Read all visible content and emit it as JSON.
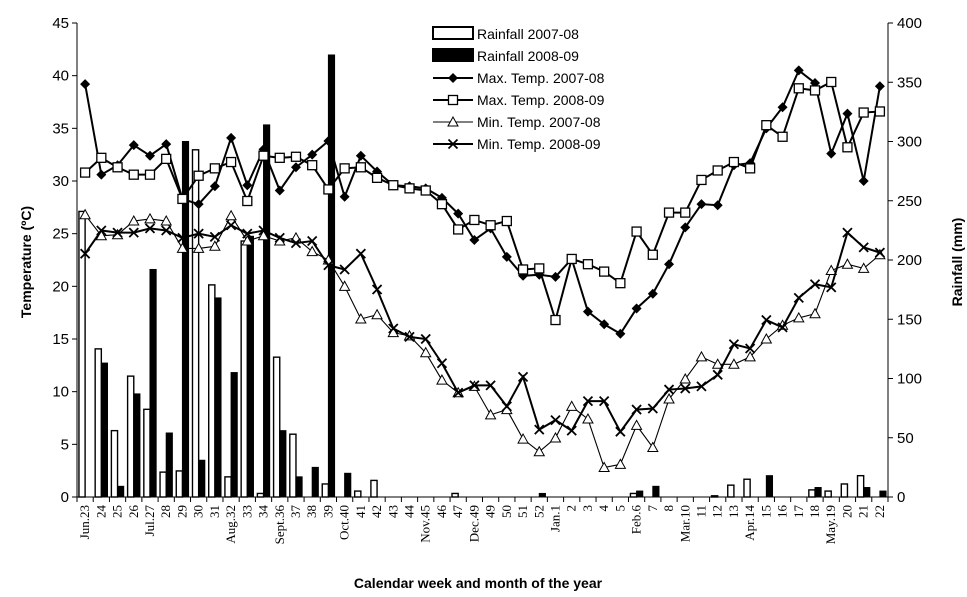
{
  "chart_data": {
    "type": "bar",
    "xlabel": "Calendar week and month of the year",
    "ylabel": "Temperature (ºC)",
    "y2label": "Rainfall (mm)",
    "ylim": [
      0,
      45
    ],
    "y2lim": [
      0,
      400
    ],
    "yticks": [
      "0",
      "5",
      "10",
      "15",
      "20",
      "25",
      "30",
      "35",
      "40",
      "45"
    ],
    "y2ticks": [
      "0",
      "50",
      "100",
      "150",
      "200",
      "250",
      "300",
      "350",
      "400"
    ],
    "grid": false,
    "legend_position": "top-center",
    "categories": [
      "Jun.23",
      "24",
      "25",
      "26",
      "Jul.27",
      "28",
      "29",
      "30",
      "31",
      "Aug.32",
      "33",
      "34",
      "Sept.36",
      "37",
      "38",
      "39",
      "Oct.40",
      "41",
      "42",
      "43",
      "44",
      "Nov.45",
      "46",
      "47",
      "Dec.49",
      "49",
      "50",
      "51",
      "52",
      "Jan.1",
      "2",
      "3",
      "4",
      "5",
      "Feb.6",
      "7",
      "8",
      "Mar.10",
      "11",
      "12",
      "13",
      "Apr.14",
      "15",
      "16",
      "17",
      "18",
      "May.19",
      "20",
      "21",
      "22"
    ],
    "series": [
      {
        "name": "Rainfall 2007-08",
        "type": "bar",
        "axis": "right",
        "values": [
          241,
          125,
          56,
          102,
          74,
          21,
          22,
          293,
          179,
          17,
          216,
          3,
          118,
          53,
          0,
          11,
          0,
          5,
          14,
          0,
          0,
          0,
          0,
          3,
          0,
          0,
          0,
          0,
          0,
          0,
          0,
          0,
          0,
          0,
          3,
          0,
          0,
          0,
          0,
          1,
          10,
          15,
          0,
          0,
          0,
          6,
          5,
          11,
          18,
          0
        ]
      },
      {
        "name": "Rainfall 2008-09",
        "type": "bar",
        "axis": "right",
        "values": [
          0,
          113,
          9,
          87,
          192,
          54,
          300,
          31,
          168,
          105,
          220,
          314,
          56,
          17,
          25,
          373,
          20,
          0,
          0,
          0,
          0,
          0,
          0,
          0,
          0,
          0,
          0,
          0,
          3,
          0,
          0,
          0,
          0,
          0,
          5,
          9,
          0,
          0,
          0,
          0,
          0,
          0,
          18,
          0,
          0,
          8,
          0,
          0,
          8,
          5
        ]
      },
      {
        "name": "Max. Temp. 2007-08",
        "type": "line",
        "marker": "diamond",
        "axis": "left",
        "values": [
          39.2,
          30.6,
          31.5,
          33.4,
          32.4,
          33.5,
          28.3,
          27.8,
          29.5,
          34.1,
          29.6,
          33.0,
          29.1,
          31.3,
          32.5,
          33.8,
          28.5,
          32.4,
          30.9,
          29.6,
          29.5,
          29.3,
          28.4,
          26.9,
          24.4,
          25.5,
          22.8,
          21.0,
          21.1,
          20.9,
          22.6,
          17.6,
          16.4,
          15.5,
          17.9,
          19.3,
          22.1,
          25.6,
          27.8,
          27.7,
          31.5,
          31.7,
          35.0,
          37.0,
          40.5,
          39.3,
          32.6,
          36.4,
          30.0,
          39.0
        ]
      },
      {
        "name": "Max. Temp. 2008-09",
        "type": "line",
        "marker": "square",
        "axis": "left",
        "values": [
          30.8,
          32.2,
          31.3,
          30.6,
          30.6,
          32.1,
          28.3,
          30.5,
          31.2,
          31.8,
          28.1,
          32.4,
          32.2,
          32.3,
          31.5,
          29.2,
          31.2,
          31.3,
          30.3,
          29.6,
          29.3,
          29.1,
          27.8,
          25.4,
          26.3,
          25.8,
          26.2,
          21.6,
          21.7,
          16.8,
          22.6,
          22.1,
          21.4,
          20.3,
          25.2,
          23.0,
          27.0,
          27.0,
          30.1,
          31.0,
          31.8,
          31.2,
          35.3,
          34.2,
          38.8,
          38.6,
          39.4,
          33.2,
          36.5,
          36.6
        ]
      },
      {
        "name": "Min. Temp. 2007-08",
        "type": "line",
        "marker": "triangle",
        "axis": "left",
        "values": [
          26.8,
          24.8,
          24.9,
          26.2,
          26.4,
          26.2,
          23.6,
          23.6,
          23.8,
          26.7,
          24.3,
          24.8,
          24.3,
          24.6,
          23.3,
          22.5,
          20.0,
          16.9,
          17.3,
          15.6,
          15.3,
          13.7,
          11.1,
          9.9,
          10.5,
          7.8,
          8.3,
          5.5,
          4.3,
          5.6,
          8.6,
          7.4,
          2.8,
          3.1,
          6.8,
          4.7,
          9.3,
          11.2,
          13.3,
          12.6,
          12.6,
          13.3,
          15.0,
          16.3,
          17.0,
          17.4,
          21.5,
          22.1,
          21.7,
          23.0
        ]
      },
      {
        "name": "Min. Temp. 2008-09",
        "type": "line",
        "marker": "x",
        "axis": "left",
        "values": [
          23.1,
          25.3,
          25.1,
          25.1,
          25.5,
          25.3,
          24.6,
          25.0,
          24.7,
          25.8,
          25.0,
          25.3,
          24.6,
          24.1,
          24.3,
          22.0,
          21.6,
          23.1,
          19.7,
          16.0,
          15.2,
          15.0,
          12.7,
          9.9,
          10.6,
          10.6,
          8.6,
          11.4,
          6.4,
          7.3,
          6.3,
          9.1,
          9.1,
          6.2,
          8.3,
          8.4,
          10.2,
          10.3,
          10.5,
          11.6,
          14.5,
          14.1,
          16.8,
          16.1,
          18.9,
          20.2,
          19.9,
          25.1,
          23.7,
          23.2
        ]
      }
    ]
  }
}
